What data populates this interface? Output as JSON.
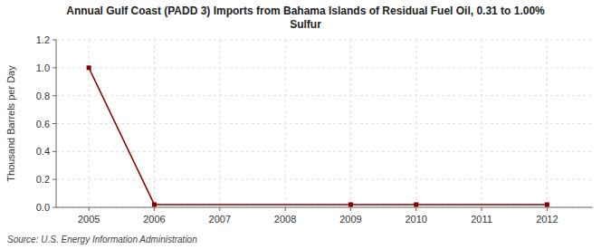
{
  "chart_data": {
    "type": "line",
    "title": "Annual Gulf Coast (PADD 3) Imports from Bahama Islands of Residual Fuel Oil, 0.31 to 1.00%\nSulfur",
    "y_label": "Thousand Barrels per Day",
    "annotations": [
      "Source: U.S. Energy Information Administration"
    ],
    "x": [
      2005,
      2006,
      2009,
      2010,
      2012
    ],
    "values": [
      1.0,
      0.02,
      0.02,
      0.02,
      0.02
    ],
    "color": "#8b0000",
    "marker": "square",
    "xlim": [
      2004.5,
      2012.7
    ],
    "ylim": [
      0.0,
      1.2
    ],
    "xticks": [
      2005,
      2006,
      2007,
      2008,
      2009,
      2010,
      2011,
      2012
    ],
    "yticks": [
      {
        "value": 0.0,
        "label": "0.0"
      },
      0.2,
      0.4,
      0.6,
      0.8,
      {
        "value": 1.0,
        "label": "1.0"
      },
      1.2
    ],
    "grid": true
  }
}
